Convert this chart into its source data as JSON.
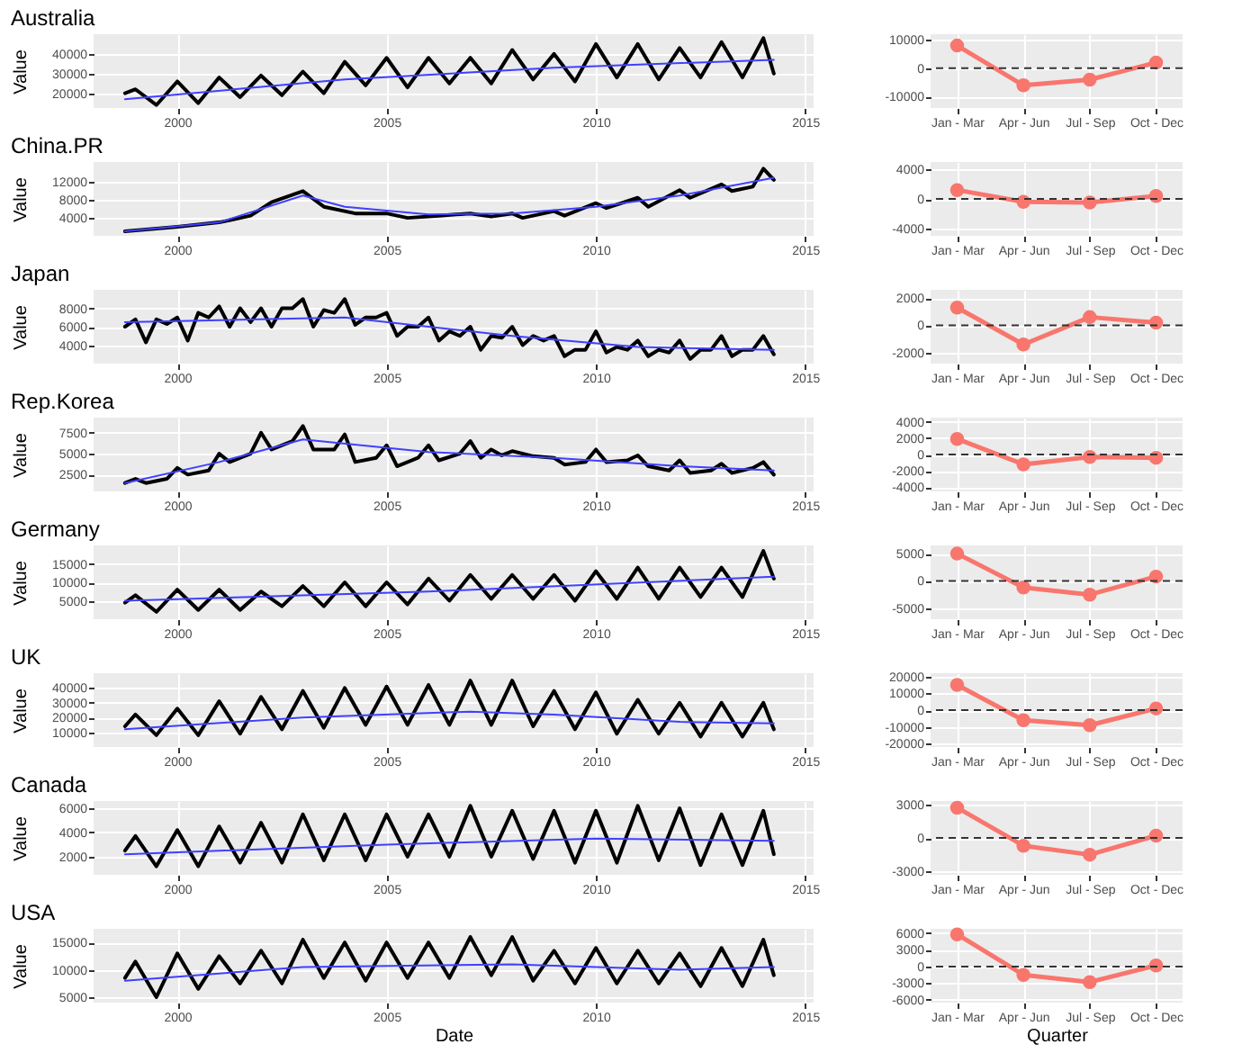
{
  "chart_data": [
    {
      "type": "line",
      "title": "Australia",
      "ylabel": "Value",
      "xlim": [
        1998,
        2015.2
      ],
      "xticks": [
        2000,
        2005,
        2010,
        2015
      ],
      "ylim": [
        12500,
        50000
      ],
      "yticks": [
        20000,
        30000,
        40000
      ],
      "grid": true,
      "series": [
        {
          "color": "#000000",
          "x": [
            1998.75,
            1999,
            1999.5,
            2000,
            2000.5,
            2001,
            2001.5,
            2002,
            2002.5,
            2003,
            2003.5,
            2004,
            2004.5,
            2005,
            2005.5,
            2006,
            2006.5,
            2007,
            2007.5,
            2008,
            2008.5,
            2009,
            2009.5,
            2010,
            2010.5,
            2011,
            2011.5,
            2012,
            2012.5,
            2013,
            2013.5,
            2014,
            2014.25
          ],
          "values": [
            20000,
            22000,
            14000,
            26000,
            15000,
            28000,
            18000,
            29000,
            19000,
            31000,
            20000,
            36000,
            24000,
            38000,
            23000,
            38000,
            25000,
            38000,
            25000,
            42000,
            27000,
            40000,
            26000,
            45000,
            28000,
            45000,
            27000,
            43000,
            28000,
            46000,
            28000,
            48000,
            30000
          ]
        },
        {
          "type": "line",
          "color": "#4040ff",
          "x": [
            1998.75,
            2004,
            2009,
            2014.25
          ],
          "values": [
            17000,
            27000,
            33000,
            37000
          ]
        }
      ]
    },
    {
      "type": "line",
      "categories": [
        "Jan - Mar",
        "Apr - Jun",
        "Jul - Sep",
        "Oct - Dec"
      ],
      "ylim": [
        -14000,
        12000
      ],
      "yticks": [
        -10000,
        0,
        10000
      ],
      "grid": true,
      "marker": "circle",
      "ref_lines": [
        {
          "axis": "y",
          "value": 0,
          "color": "#333333",
          "line_style": "dashed"
        }
      ],
      "series": [
        {
          "color": "#f8766d",
          "values": [
            8000,
            -6000,
            -4000,
            2000
          ]
        }
      ]
    },
    {
      "type": "line",
      "title": "China.PR",
      "ylabel": "Value",
      "xlim": [
        1998,
        2015.2
      ],
      "xticks": [
        2000,
        2005,
        2010,
        2015
      ],
      "ylim": [
        0,
        16500
      ],
      "yticks": [
        4000,
        8000,
        12000
      ],
      "grid": true,
      "series": [
        {
          "color": "#000000",
          "x": [
            1998.75,
            2000,
            2001,
            2001.75,
            2002.25,
            2003,
            2003.5,
            2004.25,
            2005,
            2005.5,
            2006.25,
            2007,
            2007.5,
            2008,
            2008.25,
            2009,
            2009.25,
            2010,
            2010.25,
            2011,
            2011.25,
            2012,
            2012.25,
            2013,
            2013.25,
            2013.75,
            2014,
            2014.25
          ],
          "values": [
            1000,
            2000,
            3000,
            4500,
            7500,
            10000,
            6500,
            5000,
            5000,
            4000,
            4500,
            5000,
            4300,
            5000,
            4000,
            5500,
            4500,
            7300,
            6200,
            8500,
            6500,
            10200,
            8500,
            11500,
            10000,
            11000,
            15000,
            12500
          ]
        },
        {
          "type": "line",
          "color": "#4040ff",
          "x": [
            1998.75,
            2001,
            2003,
            2004,
            2006,
            2008,
            2010,
            2012,
            2014.25
          ],
          "values": [
            1000,
            3000,
            9000,
            6500,
            4800,
            5000,
            6500,
            9000,
            13000
          ]
        }
      ]
    },
    {
      "type": "line",
      "categories": [
        "Jan - Mar",
        "Apr - Jun",
        "Jul - Sep",
        "Oct - Dec"
      ],
      "ylim": [
        -5000,
        5000
      ],
      "yticks": [
        -4000,
        0,
        4000
      ],
      "grid": true,
      "marker": "circle",
      "ref_lines": [
        {
          "axis": "y",
          "value": 0,
          "color": "#333333",
          "line_style": "dashed"
        }
      ],
      "series": [
        {
          "color": "#f8766d",
          "values": [
            1200,
            -400,
            -500,
            400
          ]
        }
      ]
    },
    {
      "type": "line",
      "title": "Japan",
      "ylabel": "Value",
      "xlim": [
        1998,
        2015.2
      ],
      "xticks": [
        2000,
        2005,
        2010,
        2015
      ],
      "ylim": [
        2000,
        10000
      ],
      "yticks": [
        4000,
        6000,
        8000
      ],
      "grid": true,
      "series": [
        {
          "color": "#000000",
          "x": [
            1998.75,
            1999,
            1999.25,
            1999.5,
            1999.75,
            2000,
            2000.25,
            2000.5,
            2000.75,
            2001,
            2001.25,
            2001.5,
            2001.75,
            2002,
            2002.25,
            2002.5,
            2002.75,
            2003,
            2003.25,
            2003.5,
            2003.75,
            2004,
            2004.25,
            2004.5,
            2004.75,
            2005,
            2005.25,
            2005.5,
            2005.75,
            2006,
            2006.25,
            2006.5,
            2006.75,
            2007,
            2007.25,
            2007.5,
            2007.75,
            2008,
            2008.25,
            2008.5,
            2008.75,
            2009,
            2009.25,
            2009.5,
            2009.75,
            2010,
            2010.25,
            2010.5,
            2010.75,
            2011,
            2011.25,
            2011.5,
            2011.75,
            2012,
            2012.25,
            2012.5,
            2012.75,
            2013,
            2013.25,
            2013.5,
            2013.75,
            2014,
            2014.25
          ],
          "values": [
            6000,
            6800,
            4300,
            6800,
            6300,
            7000,
            4500,
            7500,
            7000,
            8200,
            6000,
            8000,
            6500,
            8000,
            6000,
            8000,
            8000,
            9000,
            6000,
            7800,
            7500,
            9000,
            6200,
            7000,
            7000,
            7500,
            5000,
            6000,
            6000,
            7000,
            4500,
            5500,
            5000,
            6000,
            3500,
            5000,
            4800,
            6000,
            4000,
            5000,
            4500,
            5000,
            2800,
            3500,
            3500,
            5500,
            3200,
            3800,
            3500,
            4500,
            2800,
            3500,
            3200,
            4500,
            2500,
            3500,
            3500,
            5000,
            2800,
            3500,
            3500,
            5000,
            3000
          ]
        },
        {
          "type": "line",
          "color": "#4040ff",
          "x": [
            1998.75,
            2004,
            2008,
            2011,
            2014.25
          ],
          "values": [
            6500,
            7000,
            5000,
            3800,
            3500
          ]
        }
      ]
    },
    {
      "type": "line",
      "categories": [
        "Jan - Mar",
        "Apr - Jun",
        "Jul - Sep",
        "Oct - Dec"
      ],
      "ylim": [
        -2800,
        2600
      ],
      "yticks": [
        -2000,
        0,
        2000
      ],
      "grid": true,
      "marker": "circle",
      "ref_lines": [
        {
          "axis": "y",
          "value": 0,
          "color": "#333333",
          "line_style": "dashed"
        }
      ],
      "series": [
        {
          "color": "#f8766d",
          "values": [
            1300,
            -1400,
            600,
            200
          ]
        }
      ]
    },
    {
      "type": "line",
      "title": "Rep.Korea",
      "ylabel": "Value",
      "xlim": [
        1998,
        2015.2
      ],
      "xticks": [
        2000,
        2005,
        2010,
        2015
      ],
      "ylim": [
        500,
        9300
      ],
      "yticks": [
        2500,
        5000,
        7500
      ],
      "grid": true,
      "series": [
        {
          "color": "#000000",
          "x": [
            1998.75,
            1999,
            1999.25,
            1999.75,
            2000,
            2000.25,
            2000.75,
            2001,
            2001.25,
            2001.75,
            2002,
            2002.25,
            2002.75,
            2003,
            2003.25,
            2003.75,
            2004,
            2004.25,
            2004.75,
            2005,
            2005.25,
            2005.75,
            2006,
            2006.25,
            2006.75,
            2007,
            2007.25,
            2007.5,
            2007.75,
            2008,
            2008.5,
            2009,
            2009.25,
            2009.75,
            2010,
            2010.25,
            2010.75,
            2011,
            2011.25,
            2011.75,
            2012,
            2012.25,
            2012.75,
            2013,
            2013.25,
            2013.75,
            2014,
            2014.25
          ],
          "values": [
            1500,
            2000,
            1500,
            2000,
            3300,
            2500,
            3000,
            5000,
            4000,
            5000,
            7500,
            5500,
            6500,
            8300,
            5500,
            5500,
            7300,
            4000,
            4500,
            6000,
            3500,
            4500,
            6000,
            4200,
            5000,
            6500,
            4500,
            5500,
            4800,
            5300,
            4700,
            4500,
            3700,
            4000,
            5500,
            4000,
            4200,
            4800,
            3500,
            3000,
            4200,
            2700,
            3000,
            3800,
            2700,
            3300,
            4000,
            2500
          ]
        },
        {
          "type": "line",
          "color": "#4040ff",
          "x": [
            1998.75,
            2001,
            2003,
            2006,
            2009,
            2012,
            2014.25
          ],
          "values": [
            1500,
            4000,
            6700,
            5200,
            4500,
            3500,
            3000
          ]
        }
      ]
    },
    {
      "type": "line",
      "categories": [
        "Jan - Mar",
        "Apr - Jun",
        "Jul - Sep",
        "Oct - Dec"
      ],
      "ylim": [
        -4500,
        4500
      ],
      "yticks": [
        -4000,
        -2000,
        0,
        2000,
        4000
      ],
      "grid": true,
      "marker": "circle",
      "ref_lines": [
        {
          "axis": "y",
          "value": 0,
          "color": "#333333",
          "line_style": "dashed"
        }
      ],
      "series": [
        {
          "color": "#f8766d",
          "values": [
            1900,
            -1200,
            -300,
            -400
          ]
        }
      ]
    },
    {
      "type": "line",
      "title": "Germany",
      "ylabel": "Value",
      "xlim": [
        1998,
        2015.2
      ],
      "xticks": [
        2000,
        2005,
        2010,
        2015
      ],
      "ylim": [
        0,
        20000
      ],
      "yticks": [
        5000,
        10000,
        15000
      ],
      "grid": true,
      "series": [
        {
          "color": "#000000",
          "x": [
            1998.75,
            1999,
            1999.5,
            2000,
            2000.5,
            2001,
            2001.5,
            2002,
            2002.5,
            2003,
            2003.5,
            2004,
            2004.5,
            2005,
            2005.5,
            2006,
            2006.5,
            2007,
            2007.5,
            2008,
            2008.5,
            2009,
            2009.5,
            2010,
            2010.5,
            2011,
            2011.5,
            2012,
            2012.5,
            2013,
            2013.5,
            2014,
            2014.25
          ],
          "values": [
            4500,
            6500,
            2000,
            8000,
            2500,
            8000,
            2500,
            7500,
            3500,
            9000,
            3500,
            10000,
            3500,
            10000,
            4000,
            11000,
            5000,
            12000,
            5500,
            12000,
            5500,
            12000,
            5000,
            13000,
            5500,
            14000,
            5500,
            14000,
            6000,
            14000,
            6000,
            18500,
            11000
          ]
        },
        {
          "type": "line",
          "color": "#4040ff",
          "x": [
            1998.75,
            2006,
            2014.25
          ],
          "values": [
            5000,
            7500,
            11500
          ]
        }
      ]
    },
    {
      "type": "line",
      "categories": [
        "Jan - Mar",
        "Apr - Jun",
        "Jul - Sep",
        "Oct - Dec"
      ],
      "ylim": [
        -7000,
        6500
      ],
      "yticks": [
        -5000,
        0,
        5000
      ],
      "grid": true,
      "marker": "circle",
      "ref_lines": [
        {
          "axis": "y",
          "value": 0,
          "color": "#333333",
          "line_style": "dashed"
        }
      ],
      "series": [
        {
          "color": "#f8766d",
          "values": [
            5000,
            -1200,
            -2500,
            800
          ]
        }
      ]
    },
    {
      "type": "line",
      "title": "UK",
      "ylabel": "Value",
      "xlim": [
        1998,
        2015.2
      ],
      "xticks": [
        2000,
        2005,
        2010,
        2015
      ],
      "ylim": [
        0,
        50000
      ],
      "yticks": [
        10000,
        20000,
        30000,
        40000
      ],
      "grid": true,
      "series": [
        {
          "color": "#000000",
          "x": [
            1998.75,
            1999,
            1999.5,
            2000,
            2000.5,
            2001,
            2001.5,
            2002,
            2002.5,
            2003,
            2003.5,
            2004,
            2004.5,
            2005,
            2005.5,
            2006,
            2006.5,
            2007,
            2007.5,
            2008,
            2008.5,
            2009,
            2009.5,
            2010,
            2010.5,
            2011,
            2011.5,
            2012,
            2012.5,
            2013,
            2013.5,
            2014,
            2014.25
          ],
          "values": [
            14000,
            22000,
            8000,
            26000,
            8000,
            31000,
            9000,
            34000,
            12000,
            38000,
            13000,
            40000,
            15000,
            41000,
            15000,
            42000,
            15000,
            45000,
            15000,
            45000,
            14000,
            38000,
            12000,
            37000,
            9000,
            32000,
            9000,
            30000,
            7000,
            30000,
            7000,
            30000,
            12000
          ]
        },
        {
          "type": "line",
          "color": "#4040ff",
          "x": [
            1998.75,
            2003,
            2007,
            2009,
            2012,
            2014.25
          ],
          "values": [
            12000,
            20000,
            24000,
            22000,
            17000,
            16000
          ]
        }
      ]
    },
    {
      "type": "line",
      "categories": [
        "Jan - Mar",
        "Apr - Jun",
        "Jul - Sep",
        "Oct - Dec"
      ],
      "ylim": [
        -22000,
        22000
      ],
      "yticks": [
        -20000,
        -10000,
        0,
        10000,
        20000
      ],
      "grid": true,
      "marker": "circle",
      "ref_lines": [
        {
          "axis": "y",
          "value": 0,
          "color": "#333333",
          "line_style": "dashed"
        }
      ],
      "series": [
        {
          "color": "#f8766d",
          "values": [
            15000,
            -6000,
            -9000,
            1000
          ]
        }
      ]
    },
    {
      "type": "line",
      "title": "Canada",
      "ylabel": "Value",
      "xlim": [
        1998,
        2015.2
      ],
      "xticks": [
        2000,
        2005,
        2010,
        2015
      ],
      "ylim": [
        500,
        6600
      ],
      "yticks": [
        2000,
        4000,
        6000
      ],
      "grid": true,
      "series": [
        {
          "color": "#000000",
          "x": [
            1998.75,
            1999,
            1999.5,
            2000,
            2000.5,
            2001,
            2001.5,
            2002,
            2002.5,
            2003,
            2003.5,
            2004,
            2004.5,
            2005,
            2005.5,
            2006,
            2006.5,
            2007,
            2007.5,
            2008,
            2008.5,
            2009,
            2009.5,
            2010,
            2010.5,
            2011,
            2011.5,
            2012,
            2012.5,
            2013,
            2013.5,
            2014,
            2014.25
          ],
          "values": [
            2500,
            3700,
            1200,
            4200,
            1200,
            4500,
            1500,
            4800,
            1500,
            5500,
            1700,
            5500,
            1700,
            5500,
            2000,
            5500,
            2000,
            6200,
            2000,
            5800,
            1800,
            5800,
            1500,
            5800,
            1500,
            6200,
            1700,
            6000,
            1300,
            5500,
            1300,
            5800,
            2200
          ]
        },
        {
          "type": "line",
          "color": "#4040ff",
          "x": [
            1998.75,
            2005,
            2010,
            2014.25
          ],
          "values": [
            2200,
            3000,
            3500,
            3300
          ]
        }
      ]
    },
    {
      "type": "line",
      "categories": [
        "Jan - Mar",
        "Apr - Jun",
        "Jul - Sep",
        "Oct - Dec"
      ],
      "ylim": [
        -3300,
        3300
      ],
      "yticks": [
        -3000,
        0,
        3000
      ],
      "grid": true,
      "marker": "circle",
      "ref_lines": [
        {
          "axis": "y",
          "value": 0,
          "color": "#333333",
          "line_style": "dashed"
        }
      ],
      "series": [
        {
          "color": "#f8766d",
          "values": [
            2700,
            -700,
            -1500,
            200
          ]
        }
      ]
    },
    {
      "type": "line",
      "title": "USA",
      "xlabel": "Date",
      "ylabel": "Value",
      "xlim": [
        1998,
        2015.2
      ],
      "xticks": [
        2000,
        2005,
        2010,
        2015
      ],
      "ylim": [
        4000,
        17500
      ],
      "yticks": [
        5000,
        10000,
        15000
      ],
      "grid": true,
      "series": [
        {
          "color": "#000000",
          "x": [
            1998.75,
            1999,
            1999.5,
            2000,
            2000.5,
            2001,
            2001.5,
            2002,
            2002.5,
            2003,
            2003.5,
            2004,
            2004.5,
            2005,
            2005.5,
            2006,
            2006.5,
            2007,
            2007.5,
            2008,
            2008.5,
            2009,
            2009.5,
            2010,
            2010.5,
            2011,
            2011.5,
            2012,
            2012.5,
            2013,
            2013.5,
            2014,
            2014.25
          ],
          "values": [
            8500,
            11500,
            5000,
            13000,
            6500,
            12500,
            7500,
            13500,
            7500,
            15500,
            8500,
            15000,
            8000,
            15000,
            8500,
            15000,
            8500,
            16000,
            9000,
            16000,
            8000,
            13500,
            7500,
            14000,
            7500,
            13500,
            7500,
            13000,
            7000,
            14000,
            7000,
            15500,
            9000
          ]
        },
        {
          "type": "line",
          "color": "#4040ff",
          "x": [
            1998.75,
            2003,
            2008,
            2012,
            2014.25
          ],
          "values": [
            8000,
            10500,
            11000,
            10000,
            10500
          ]
        }
      ]
    },
    {
      "type": "line",
      "xlabel": "Quarter",
      "categories": [
        "Jan - Mar",
        "Apr - Jun",
        "Jul - Sep",
        "Oct - Dec"
      ],
      "ylim": [
        -6500,
        6800
      ],
      "yticks": [
        -6000,
        -3000,
        0,
        3000,
        6000
      ],
      "grid": true,
      "marker": "circle",
      "ref_lines": [
        {
          "axis": "y",
          "value": 0,
          "color": "#333333",
          "line_style": "dashed"
        }
      ],
      "series": [
        {
          "color": "#f8766d",
          "values": [
            5800,
            -1500,
            -2800,
            200
          ]
        }
      ]
    }
  ]
}
